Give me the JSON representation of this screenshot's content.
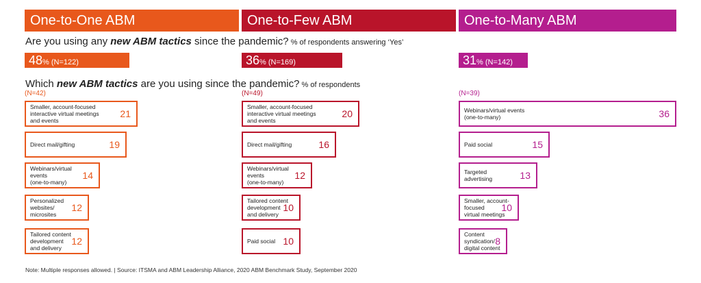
{
  "headers": [
    "One-to-One ABM",
    "One-to-Few ABM",
    "One-to-Many ABM"
  ],
  "question1": {
    "prefix": "Are you using any ",
    "emph": "new ABM tactics",
    "suffix": " since the pandemic?",
    "small": " % of respondents answering ‘Yes’"
  },
  "question2": {
    "prefix": "Which ",
    "emph": "new ABM tactics",
    "suffix": " are you using since the pandemic?",
    "small": " % of respondents"
  },
  "totals": [
    {
      "value": "48",
      "pct": "%",
      "n": " (N=122)"
    },
    {
      "value": "36",
      "pct": "%",
      "n": " (N=169)"
    },
    {
      "value": "31",
      "pct": "%",
      "n": " (N=142)"
    }
  ],
  "colors": {
    "one_to_one": "#e8581c",
    "one_to_few": "#b9142a",
    "one_to_many": "#b41e8e"
  },
  "chart_data": [
    {
      "type": "bar",
      "title": "One-to-One ABM",
      "n": "(N=42)",
      "categories": [
        "Smaller, account-focused\ninteractive virtual meetings\nand events",
        "Direct mail/gifting",
        "Webinars/virtual\nevents\n(one-to-many)",
        "Personalized\nwebsites/\nmicrosites",
        "Tailored content\ndevelopment\nand delivery"
      ],
      "values": [
        21,
        19,
        14,
        12,
        12
      ]
    },
    {
      "type": "bar",
      "title": "One-to-Few ABM",
      "n": "(N=49)",
      "categories": [
        "Smaller, account-focused\ninteractive virtual meetings\nand events",
        "Direct mail/gifting",
        "Webinars/virtual\nevents\n(one-to-many)",
        "Tailored content\ndevelopment\nand delivery",
        "Paid social"
      ],
      "values": [
        20,
        16,
        12,
        10,
        10
      ]
    },
    {
      "type": "bar",
      "title": "One-to-Many ABM",
      "n": "(N=39)",
      "categories": [
        "Webinars/virtual events\n(one-to-many)",
        "Paid social",
        "Targeted\nadvertising",
        "Smaller, account-\nfocused\nvirtual meetings",
        "Content\nsyndication/\ndigital content"
      ],
      "values": [
        36,
        15,
        13,
        10,
        8
      ]
    }
  ],
  "note": "Note: Multiple responses allowed. | Source: ITSMA and ABM Leadership Alliance, 2020 ABM Benchmark Study, September 2020"
}
